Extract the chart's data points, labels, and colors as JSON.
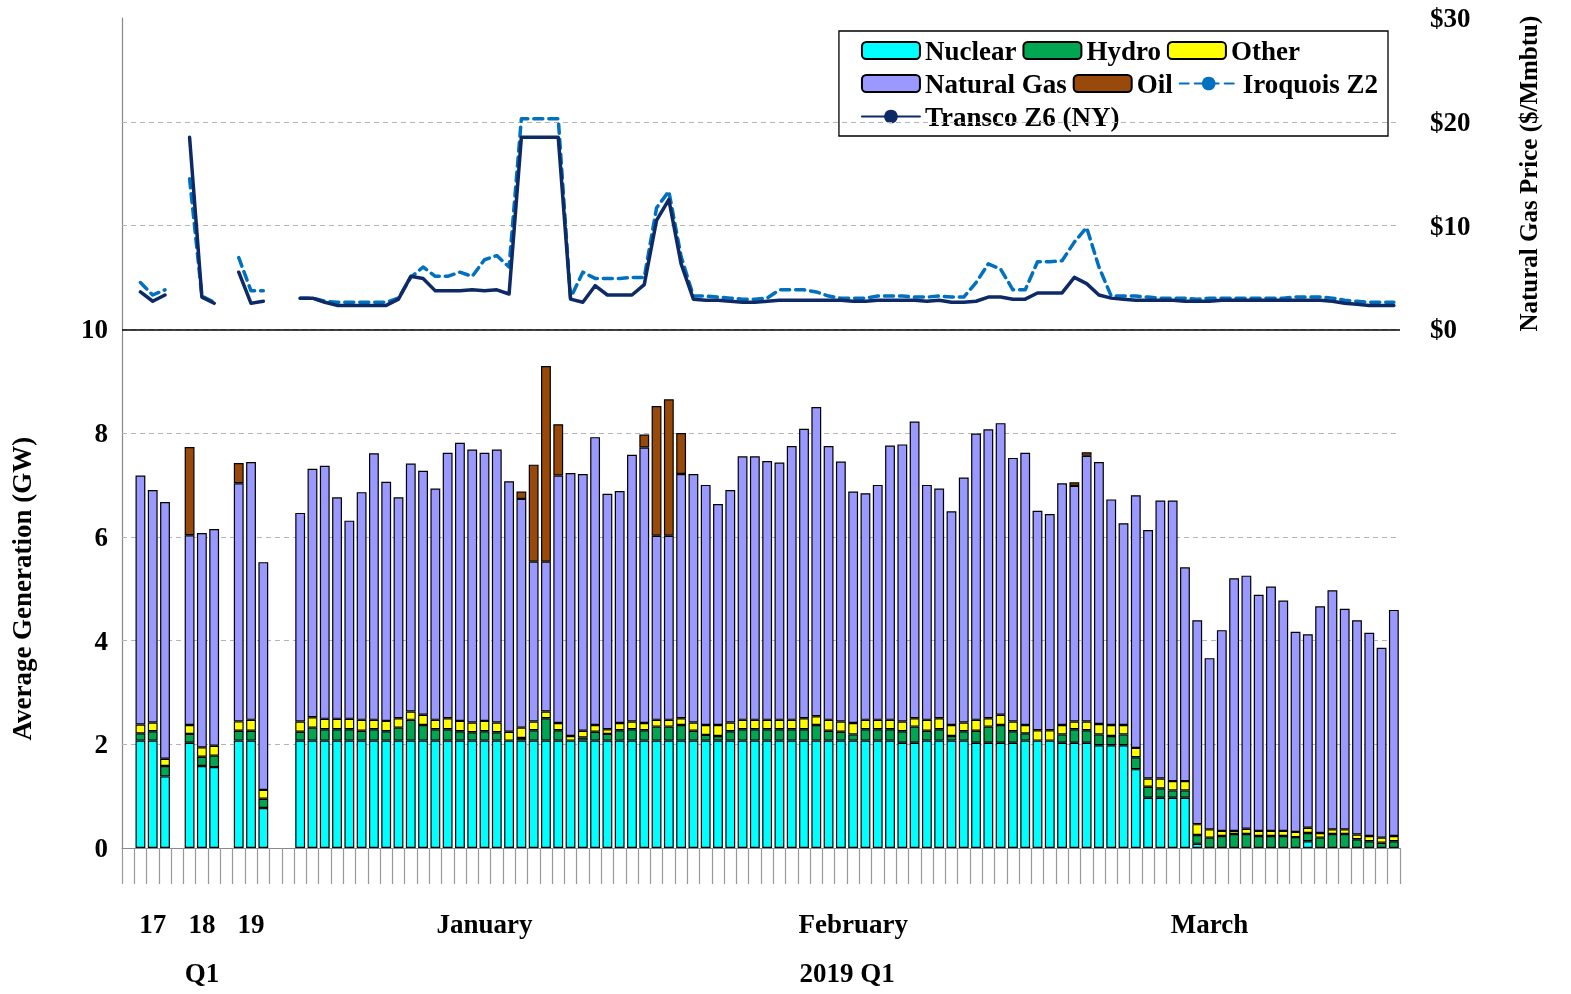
{
  "chart_data": {
    "type": "bar",
    "stacked": true,
    "ylabel": "Average Generation (GW)",
    "y2label": "Natural Gas Price ($/Mmbtu)",
    "annotations": [
      "Q1",
      "2019 Q1"
    ],
    "categories": [
      null,
      null,
      "17",
      null,
      null,
      null,
      "18",
      null,
      null,
      null,
      "19",
      null,
      null,
      null,
      null,
      null,
      null,
      null,
      null,
      null,
      null,
      null,
      null,
      null,
      null,
      null,
      null,
      null,
      null,
      "January",
      null,
      null,
      null,
      null,
      null,
      null,
      null,
      null,
      null,
      null,
      null,
      null,
      null,
      null,
      null,
      null,
      null,
      null,
      null,
      null,
      null,
      null,
      null,
      null,
      null,
      null,
      null,
      null,
      null,
      "February",
      null,
      null,
      null,
      null,
      null,
      null,
      null,
      null,
      null,
      null,
      null,
      null,
      null,
      null,
      null,
      null,
      null,
      null,
      null,
      null,
      null,
      null,
      null,
      null,
      null,
      null,
      null,
      null,
      "March",
      null,
      null,
      null,
      null,
      null,
      null,
      null,
      null,
      null,
      null,
      null,
      null,
      null,
      null,
      null
    ],
    "ylim": [
      0,
      16
    ],
    "yticks": [
      0,
      2,
      4,
      6,
      8,
      10
    ],
    "y2lim": [
      -50,
      30
    ],
    "y2ticks": [
      {
        "value": 0,
        "label": "$0"
      },
      {
        "value": 10,
        "label": "$10"
      },
      {
        "value": 20,
        "label": "$20"
      },
      {
        "value": 30,
        "label": "$30"
      }
    ],
    "grid": "y",
    "legend": "top right",
    "ref_lines": [
      {
        "axis": "y",
        "value": 10,
        "color": "#000000"
      }
    ],
    "series": [
      {
        "name": "Nuclear",
        "color": "#00ffff",
        "values": [
          null,
          2.07,
          2.07,
          1.38,
          null,
          2.03,
          1.58,
          1.56,
          null,
          2.07,
          2.07,
          0.77,
          null,
          null,
          2.07,
          2.07,
          2.07,
          2.07,
          2.07,
          2.07,
          2.07,
          2.07,
          2.07,
          2.07,
          2.07,
          2.07,
          2.07,
          2.07,
          2.07,
          2.07,
          2.07,
          2.07,
          2.07,
          2.07,
          2.07,
          2.07,
          2.07,
          2.07,
          2.07,
          2.07,
          2.07,
          2.07,
          2.07,
          2.07,
          2.07,
          2.07,
          2.07,
          2.07,
          2.07,
          2.07,
          2.07,
          2.07,
          2.07,
          2.07,
          2.07,
          2.07,
          2.07,
          2.07,
          2.07,
          2.07,
          2.07,
          2.07,
          2.07,
          2.03,
          2.03,
          2.07,
          2.07,
          2.07,
          2.07,
          2.03,
          2.03,
          2.03,
          2.03,
          2.07,
          2.07,
          2.07,
          2.03,
          2.03,
          2.03,
          1.98,
          1.98,
          1.98,
          1.52,
          0.97,
          0.97,
          0.97,
          0.97,
          0.08,
          0,
          0,
          0,
          0,
          0,
          0,
          0,
          0,
          0.13,
          0,
          0,
          0,
          0,
          0,
          0,
          0
        ]
      },
      {
        "name": "Hydro",
        "color": "#00a651",
        "values": [
          null,
          0.14,
          0.18,
          0.2,
          null,
          0.17,
          0.18,
          0.22,
          null,
          0.19,
          0.19,
          0.18,
          null,
          null,
          0.17,
          0.25,
          0.22,
          0.22,
          0.22,
          0.19,
          0.22,
          0.18,
          0.25,
          0.4,
          0.3,
          0.22,
          0.22,
          0.18,
          0.16,
          0.18,
          0.16,
          0,
          0.05,
          0.2,
          0.43,
          0.2,
          0,
          0.06,
          0.17,
          0.13,
          0.2,
          0.22,
          0.2,
          0.27,
          0.27,
          0.3,
          0.19,
          0.11,
          0.09,
          0.18,
          0.22,
          0.22,
          0.22,
          0.22,
          0.22,
          0.22,
          0.3,
          0.19,
          0.17,
          0.12,
          0.22,
          0.22,
          0.22,
          0.22,
          0.31,
          0.19,
          0.22,
          0.09,
          0.18,
          0.23,
          0.31,
          0.34,
          0.22,
          0.14,
          0,
          0,
          0.16,
          0.26,
          0.24,
          0.21,
          0.18,
          0.21,
          0.23,
          0.21,
          0.18,
          0.14,
          0.14,
          0.17,
          0.2,
          0.23,
          0.27,
          0.27,
          0.23,
          0.23,
          0.23,
          0.21,
          0.16,
          0.2,
          0.27,
          0.27,
          0.17,
          0.13,
          0.1,
          0.13
        ]
      },
      {
        "name": "Other",
        "color": "#ffff00",
        "values": [
          null,
          0.17,
          0.17,
          0.14,
          null,
          0.17,
          0.18,
          0.19,
          null,
          0.18,
          0.21,
          0.17,
          null,
          null,
          0.2,
          0.2,
          0.2,
          0.2,
          0.2,
          0.21,
          0.18,
          0.2,
          0.18,
          0.16,
          0.2,
          0.18,
          0.21,
          0.2,
          0.19,
          0.2,
          0.19,
          0.17,
          0.2,
          0.17,
          0.13,
          0.14,
          0.09,
          0.13,
          0.13,
          0.09,
          0.14,
          0.15,
          0.14,
          0.13,
          0.13,
          0.13,
          0.16,
          0.19,
          0.21,
          0.17,
          0.18,
          0.18,
          0.18,
          0.18,
          0.18,
          0.21,
          0.17,
          0.21,
          0.2,
          0.22,
          0.18,
          0.18,
          0.18,
          0.19,
          0.16,
          0.21,
          0.21,
          0.21,
          0.17,
          0.21,
          0.16,
          0.2,
          0.19,
          0.16,
          0.2,
          0.2,
          0.18,
          0.15,
          0.17,
          0.2,
          0.21,
          0.18,
          0.18,
          0.16,
          0.19,
          0.18,
          0.18,
          0.21,
          0.16,
          0.1,
          0.06,
          0.1,
          0.1,
          0.1,
          0.1,
          0.1,
          0.1,
          0.09,
          0.09,
          0.09,
          0.09,
          0.1,
          0.1,
          0.1
        ]
      },
      {
        "name": "Natural Gas",
        "color": "#9999ff",
        "values": [
          null,
          4.8,
          4.48,
          4.95,
          null,
          3.66,
          4.13,
          4.18,
          null,
          4.59,
          4.97,
          4.39,
          null,
          null,
          4.02,
          4.79,
          4.88,
          4.27,
          3.82,
          4.39,
          5.14,
          4.61,
          4.26,
          4.78,
          4.7,
          4.46,
          5.12,
          5.36,
          5.26,
          5.17,
          5.26,
          4.83,
          4.41,
          3.08,
          2.89,
          4.77,
          5.07,
          4.95,
          5.55,
          4.54,
          4.47,
          5.14,
          5.31,
          3.55,
          3.55,
          4.71,
          4.79,
          4.63,
          4.26,
          4.48,
          5.08,
          5.08,
          4.99,
          4.96,
          5.28,
          5.58,
          5.96,
          5.28,
          5.01,
          4.46,
          4.37,
          4.53,
          5.29,
          5.34,
          5.72,
          4.53,
          4.43,
          4.12,
          4.72,
          5.52,
          5.57,
          5.62,
          5.08,
          5.25,
          4.23,
          4.17,
          4.66,
          4.54,
          5.12,
          5.05,
          4.35,
          3.89,
          4.87,
          4.79,
          5.36,
          5.41,
          4.12,
          3.93,
          3.3,
          3.87,
          4.87,
          4.88,
          4.55,
          4.71,
          4.44,
          3.86,
          3.73,
          4.37,
          4.61,
          4.25,
          4.13,
          3.92,
          3.66,
          4.36
        ]
      },
      {
        "name": "Oil",
        "color": "#994a0a",
        "values": [
          null,
          null,
          null,
          null,
          null,
          1.7,
          null,
          null,
          null,
          0.39,
          null,
          null,
          null,
          null,
          null,
          null,
          null,
          null,
          null,
          null,
          null,
          null,
          null,
          null,
          null,
          null,
          null,
          null,
          null,
          null,
          null,
          null,
          0.14,
          1.87,
          3.77,
          0.99,
          null,
          null,
          null,
          null,
          null,
          null,
          0.25,
          2.5,
          2.63,
          0.79,
          null,
          null,
          null,
          null,
          null,
          null,
          null,
          null,
          null,
          null,
          null,
          null,
          null,
          null,
          null,
          null,
          null,
          null,
          null,
          null,
          null,
          null,
          null,
          null,
          null,
          null,
          null,
          null,
          null,
          null,
          null,
          0.07,
          0.07,
          null,
          null,
          null,
          null,
          null,
          null,
          null,
          null,
          null,
          null,
          null,
          null,
          null,
          null,
          null,
          null,
          null,
          null,
          null,
          null,
          null,
          null,
          null,
          null,
          null
        ]
      },
      {
        "name": "Iroquois Z2",
        "type": "line",
        "axis": "y2",
        "line_style": "dashed",
        "color": "#0070c0",
        "values": [
          null,
          4.5,
          3.3,
          3.8,
          null,
          14.5,
          3.2,
          2.6,
          null,
          6.9,
          3.7,
          3.7,
          null,
          null,
          3.0,
          3.0,
          2.7,
          2.6,
          2.6,
          2.6,
          2.6,
          2.6,
          3.0,
          5.0,
          6.0,
          5.1,
          5.1,
          5.5,
          5.1,
          6.7,
          7.1,
          6.0,
          20.3,
          20.3,
          20.3,
          20.3,
          3.0,
          5.5,
          4.9,
          4.9,
          4.9,
          5.0,
          5.0,
          11.7,
          13.3,
          7.0,
          3.2,
          3.2,
          3.1,
          3.0,
          2.9,
          2.9,
          3.0,
          3.8,
          3.8,
          3.8,
          3.6,
          3.2,
          3.0,
          3.0,
          3.0,
          3.2,
          3.2,
          3.2,
          3.1,
          3.1,
          3.2,
          3.1,
          3.1,
          4.5,
          6.3,
          5.8,
          3.8,
          3.8,
          6.5,
          6.5,
          6.6,
          8.4,
          9.8,
          6.0,
          3.2,
          3.2,
          3.2,
          3.1,
          3.0,
          3.0,
          3.0,
          2.9,
          3.0,
          3.0,
          3.0,
          3.0,
          3.0,
          3.0,
          3.0,
          3.1,
          3.1,
          3.1,
          3.0,
          2.8,
          2.7,
          2.6,
          2.6,
          2.6
        ]
      },
      {
        "name": "Transco Z6 (NY)",
        "type": "line",
        "axis": "y2",
        "line_style": "solid",
        "color": "#0d2a66",
        "values": [
          null,
          3.6,
          2.7,
          3.3,
          null,
          18.5,
          3.1,
          2.5,
          null,
          5.5,
          2.5,
          2.7,
          null,
          null,
          3.0,
          3.0,
          2.6,
          2.3,
          2.3,
          2.3,
          2.3,
          2.3,
          2.9,
          5.1,
          4.9,
          3.7,
          3.7,
          3.7,
          3.8,
          3.7,
          3.8,
          3.4,
          18.5,
          18.5,
          18.5,
          18.5,
          2.9,
          2.6,
          4.2,
          3.3,
          3.3,
          3.3,
          4.3,
          10.5,
          12.5,
          6.3,
          2.9,
          2.8,
          2.8,
          2.7,
          2.6,
          2.6,
          2.7,
          2.8,
          2.8,
          2.8,
          2.8,
          2.8,
          2.8,
          2.7,
          2.7,
          2.8,
          2.8,
          2.8,
          2.8,
          2.7,
          2.8,
          2.6,
          2.6,
          2.7,
          3.1,
          3.1,
          2.9,
          2.9,
          3.5,
          3.5,
          3.5,
          5.0,
          4.4,
          3.3,
          3.0,
          2.9,
          2.8,
          2.8,
          2.8,
          2.8,
          2.7,
          2.7,
          2.7,
          2.8,
          2.8,
          2.8,
          2.8,
          2.8,
          2.8,
          2.8,
          2.8,
          2.8,
          2.7,
          2.5,
          2.4,
          2.3,
          2.3,
          2.3
        ]
      }
    ]
  }
}
